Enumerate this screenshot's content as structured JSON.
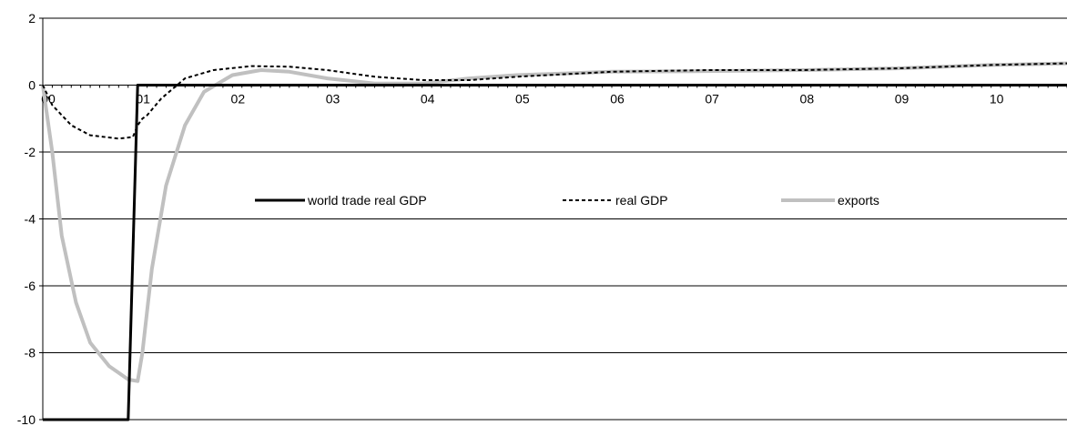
{
  "chart_data": {
    "type": "line",
    "title": "",
    "xlabel": "",
    "ylabel": "",
    "xlim": [
      0,
      10.8
    ],
    "ylim": [
      -10,
      2
    ],
    "y_ticks": [
      2,
      0,
      -2,
      -4,
      -6,
      -8,
      -10
    ],
    "x_ticks": [
      0,
      1,
      2,
      3,
      4,
      5,
      6,
      7,
      8,
      9,
      10
    ],
    "x_tick_labels": [
      "00",
      "01",
      "02",
      "03",
      "04",
      "05",
      "06",
      "07",
      "08",
      "09",
      "10"
    ],
    "grid": "horizontal",
    "legend_position": "inside-upper-middle",
    "series": [
      {
        "name": "world trade real GDP",
        "color": "#000000",
        "style": "solid-thick",
        "points": [
          [
            0,
            -10
          ],
          [
            0.9,
            -10
          ],
          [
            1.0,
            0
          ],
          [
            10.8,
            0
          ]
        ]
      },
      {
        "name": "real GDP",
        "color": "#000000",
        "style": "dashed",
        "points": [
          [
            0,
            0
          ],
          [
            0.1,
            -0.6
          ],
          [
            0.3,
            -1.2
          ],
          [
            0.5,
            -1.5
          ],
          [
            0.8,
            -1.6
          ],
          [
            0.95,
            -1.55
          ],
          [
            1.0,
            -1.2
          ],
          [
            1.05,
            -1.0
          ],
          [
            1.1,
            -0.9
          ],
          [
            1.25,
            -0.4
          ],
          [
            1.5,
            0.2
          ],
          [
            1.8,
            0.45
          ],
          [
            2.2,
            0.57
          ],
          [
            2.6,
            0.55
          ],
          [
            3.0,
            0.45
          ],
          [
            3.5,
            0.25
          ],
          [
            4.0,
            0.15
          ],
          [
            4.5,
            0.15
          ],
          [
            5.0,
            0.25
          ],
          [
            6.0,
            0.4
          ],
          [
            7.0,
            0.45
          ],
          [
            8.0,
            0.45
          ],
          [
            9.0,
            0.5
          ],
          [
            10.0,
            0.6
          ],
          [
            10.8,
            0.65
          ]
        ]
      },
      {
        "name": "exports",
        "color": "#c0c0c0",
        "style": "solid-thick",
        "points": [
          [
            0,
            0
          ],
          [
            0.1,
            -2
          ],
          [
            0.2,
            -4.5
          ],
          [
            0.35,
            -6.5
          ],
          [
            0.5,
            -7.7
          ],
          [
            0.7,
            -8.4
          ],
          [
            0.9,
            -8.8
          ],
          [
            1.0,
            -8.85
          ],
          [
            1.05,
            -8.0
          ],
          [
            1.15,
            -5.5
          ],
          [
            1.3,
            -3.0
          ],
          [
            1.5,
            -1.2
          ],
          [
            1.7,
            -0.2
          ],
          [
            2.0,
            0.3
          ],
          [
            2.3,
            0.45
          ],
          [
            2.6,
            0.4
          ],
          [
            3.0,
            0.2
          ],
          [
            3.5,
            0.05
          ],
          [
            4.0,
            0.05
          ],
          [
            4.5,
            0.2
          ],
          [
            5.0,
            0.3
          ],
          [
            6.0,
            0.4
          ],
          [
            7.0,
            0.42
          ],
          [
            8.0,
            0.45
          ],
          [
            9.0,
            0.5
          ],
          [
            10.0,
            0.6
          ],
          [
            10.8,
            0.65
          ]
        ]
      }
    ]
  }
}
